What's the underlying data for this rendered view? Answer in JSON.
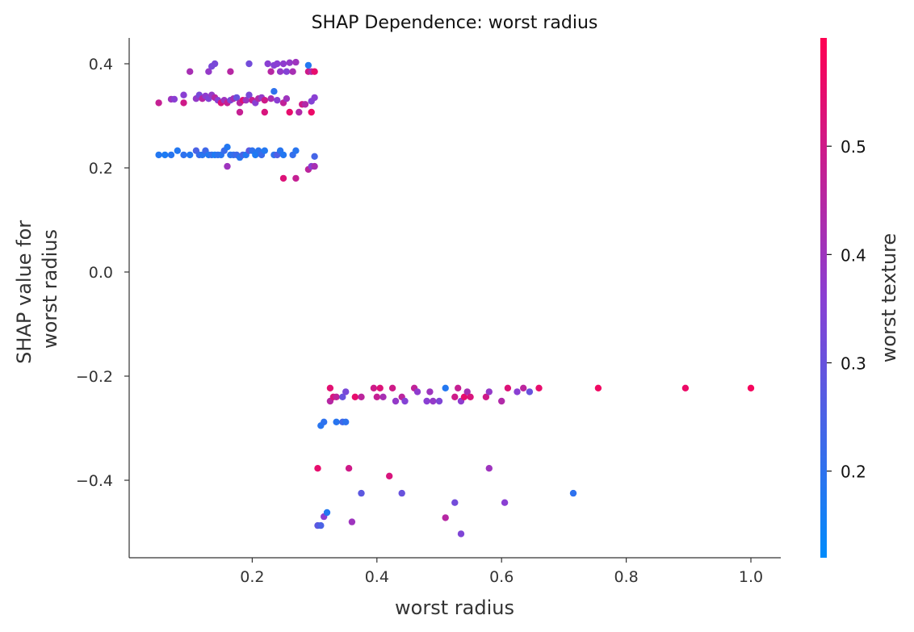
{
  "chart_data": {
    "type": "scatter",
    "title": "SHAP Dependence: worst radius",
    "xlabel": "worst radius",
    "ylabel_lines": [
      "SHAP value for",
      "worst radius"
    ],
    "xlim": [
      0.0,
      1.05
    ],
    "ylim": [
      -0.55,
      0.45
    ],
    "x_ticks": [
      0.2,
      0.4,
      0.6,
      0.8,
      1.0
    ],
    "x_tick_labels": [
      "0.2",
      "0.4",
      "0.6",
      "0.8",
      "1.0"
    ],
    "y_ticks": [
      0.4,
      0.2,
      0.0,
      -0.2,
      -0.4
    ],
    "y_tick_labels": [
      "0.4",
      "0.2",
      "0.0",
      "−0.2",
      "−0.4"
    ],
    "grid": false,
    "colorbar": {
      "label": "worst texture",
      "range": [
        0.12,
        0.6
      ],
      "ticks": [
        0.5,
        0.4,
        0.3,
        0.2
      ],
      "tick_labels": [
        "0.5",
        "0.4",
        "0.3",
        "0.2"
      ],
      "low_color": "#008bfb",
      "mid_color": "#8a3fd3",
      "high_color": "#ff0052"
    },
    "points": [
      {
        "x": 0.1,
        "y": 0.385,
        "c": 0.42
      },
      {
        "x": 0.13,
        "y": 0.385,
        "c": 0.38
      },
      {
        "x": 0.135,
        "y": 0.395,
        "c": 0.33
      },
      {
        "x": 0.14,
        "y": 0.4,
        "c": 0.33
      },
      {
        "x": 0.165,
        "y": 0.385,
        "c": 0.45
      },
      {
        "x": 0.195,
        "y": 0.4,
        "c": 0.32
      },
      {
        "x": 0.225,
        "y": 0.4,
        "c": 0.36
      },
      {
        "x": 0.23,
        "y": 0.385,
        "c": 0.45
      },
      {
        "x": 0.235,
        "y": 0.397,
        "c": 0.35
      },
      {
        "x": 0.24,
        "y": 0.4,
        "c": 0.36
      },
      {
        "x": 0.245,
        "y": 0.385,
        "c": 0.38
      },
      {
        "x": 0.25,
        "y": 0.4,
        "c": 0.37
      },
      {
        "x": 0.255,
        "y": 0.385,
        "c": 0.35
      },
      {
        "x": 0.26,
        "y": 0.402,
        "c": 0.38
      },
      {
        "x": 0.265,
        "y": 0.385,
        "c": 0.42
      },
      {
        "x": 0.27,
        "y": 0.403,
        "c": 0.4
      },
      {
        "x": 0.29,
        "y": 0.385,
        "c": 0.5
      },
      {
        "x": 0.295,
        "y": 0.385,
        "c": 0.44
      },
      {
        "x": 0.29,
        "y": 0.397,
        "c": 0.18
      },
      {
        "x": 0.3,
        "y": 0.385,
        "c": 0.55
      },
      {
        "x": 0.05,
        "y": 0.325,
        "c": 0.48
      },
      {
        "x": 0.07,
        "y": 0.332,
        "c": 0.4
      },
      {
        "x": 0.075,
        "y": 0.332,
        "c": 0.36
      },
      {
        "x": 0.09,
        "y": 0.34,
        "c": 0.36
      },
      {
        "x": 0.09,
        "y": 0.325,
        "c": 0.5
      },
      {
        "x": 0.11,
        "y": 0.333,
        "c": 0.38
      },
      {
        "x": 0.115,
        "y": 0.34,
        "c": 0.33
      },
      {
        "x": 0.12,
        "y": 0.333,
        "c": 0.45
      },
      {
        "x": 0.125,
        "y": 0.338,
        "c": 0.37
      },
      {
        "x": 0.13,
        "y": 0.333,
        "c": 0.34
      },
      {
        "x": 0.135,
        "y": 0.34,
        "c": 0.38
      },
      {
        "x": 0.14,
        "y": 0.335,
        "c": 0.45
      },
      {
        "x": 0.145,
        "y": 0.33,
        "c": 0.36
      },
      {
        "x": 0.15,
        "y": 0.325,
        "c": 0.52
      },
      {
        "x": 0.155,
        "y": 0.33,
        "c": 0.4
      },
      {
        "x": 0.16,
        "y": 0.325,
        "c": 0.48
      },
      {
        "x": 0.165,
        "y": 0.33,
        "c": 0.34
      },
      {
        "x": 0.17,
        "y": 0.333,
        "c": 0.42
      },
      {
        "x": 0.175,
        "y": 0.335,
        "c": 0.3
      },
      {
        "x": 0.18,
        "y": 0.325,
        "c": 0.45
      },
      {
        "x": 0.185,
        "y": 0.33,
        "c": 0.53
      },
      {
        "x": 0.19,
        "y": 0.33,
        "c": 0.4
      },
      {
        "x": 0.195,
        "y": 0.34,
        "c": 0.33
      },
      {
        "x": 0.2,
        "y": 0.33,
        "c": 0.48
      },
      {
        "x": 0.205,
        "y": 0.325,
        "c": 0.36
      },
      {
        "x": 0.21,
        "y": 0.333,
        "c": 0.44
      },
      {
        "x": 0.215,
        "y": 0.335,
        "c": 0.38
      },
      {
        "x": 0.22,
        "y": 0.33,
        "c": 0.5
      },
      {
        "x": 0.23,
        "y": 0.333,
        "c": 0.42
      },
      {
        "x": 0.24,
        "y": 0.33,
        "c": 0.36
      },
      {
        "x": 0.25,
        "y": 0.325,
        "c": 0.47
      },
      {
        "x": 0.255,
        "y": 0.333,
        "c": 0.4
      },
      {
        "x": 0.28,
        "y": 0.322,
        "c": 0.5
      },
      {
        "x": 0.285,
        "y": 0.322,
        "c": 0.44
      },
      {
        "x": 0.295,
        "y": 0.328,
        "c": 0.35
      },
      {
        "x": 0.3,
        "y": 0.335,
        "c": 0.36
      },
      {
        "x": 0.18,
        "y": 0.307,
        "c": 0.48
      },
      {
        "x": 0.22,
        "y": 0.307,
        "c": 0.52
      },
      {
        "x": 0.235,
        "y": 0.347,
        "c": 0.2
      },
      {
        "x": 0.26,
        "y": 0.307,
        "c": 0.55
      },
      {
        "x": 0.275,
        "y": 0.307,
        "c": 0.44
      },
      {
        "x": 0.295,
        "y": 0.307,
        "c": 0.56
      },
      {
        "x": 0.05,
        "y": 0.225,
        "c": 0.18
      },
      {
        "x": 0.06,
        "y": 0.225,
        "c": 0.17
      },
      {
        "x": 0.07,
        "y": 0.225,
        "c": 0.19
      },
      {
        "x": 0.08,
        "y": 0.233,
        "c": 0.18
      },
      {
        "x": 0.09,
        "y": 0.225,
        "c": 0.2
      },
      {
        "x": 0.1,
        "y": 0.225,
        "c": 0.18
      },
      {
        "x": 0.11,
        "y": 0.233,
        "c": 0.25
      },
      {
        "x": 0.115,
        "y": 0.225,
        "c": 0.22
      },
      {
        "x": 0.12,
        "y": 0.225,
        "c": 0.19
      },
      {
        "x": 0.125,
        "y": 0.233,
        "c": 0.23
      },
      {
        "x": 0.13,
        "y": 0.225,
        "c": 0.18
      },
      {
        "x": 0.135,
        "y": 0.225,
        "c": 0.21
      },
      {
        "x": 0.14,
        "y": 0.225,
        "c": 0.17
      },
      {
        "x": 0.145,
        "y": 0.225,
        "c": 0.2
      },
      {
        "x": 0.15,
        "y": 0.225,
        "c": 0.19
      },
      {
        "x": 0.155,
        "y": 0.233,
        "c": 0.22
      },
      {
        "x": 0.16,
        "y": 0.24,
        "c": 0.18
      },
      {
        "x": 0.165,
        "y": 0.225,
        "c": 0.19
      },
      {
        "x": 0.17,
        "y": 0.225,
        "c": 0.21
      },
      {
        "x": 0.175,
        "y": 0.225,
        "c": 0.23
      },
      {
        "x": 0.18,
        "y": 0.22,
        "c": 0.19
      },
      {
        "x": 0.185,
        "y": 0.225,
        "c": 0.24
      },
      {
        "x": 0.19,
        "y": 0.225,
        "c": 0.18
      },
      {
        "x": 0.195,
        "y": 0.233,
        "c": 0.28
      },
      {
        "x": 0.2,
        "y": 0.233,
        "c": 0.2
      },
      {
        "x": 0.205,
        "y": 0.225,
        "c": 0.17
      },
      {
        "x": 0.21,
        "y": 0.233,
        "c": 0.19
      },
      {
        "x": 0.215,
        "y": 0.225,
        "c": 0.22
      },
      {
        "x": 0.22,
        "y": 0.233,
        "c": 0.18
      },
      {
        "x": 0.235,
        "y": 0.225,
        "c": 0.2
      },
      {
        "x": 0.24,
        "y": 0.225,
        "c": 0.26
      },
      {
        "x": 0.245,
        "y": 0.233,
        "c": 0.19
      },
      {
        "x": 0.25,
        "y": 0.225,
        "c": 0.18
      },
      {
        "x": 0.265,
        "y": 0.225,
        "c": 0.21
      },
      {
        "x": 0.27,
        "y": 0.233,
        "c": 0.19
      },
      {
        "x": 0.3,
        "y": 0.222,
        "c": 0.24
      },
      {
        "x": 0.16,
        "y": 0.203,
        "c": 0.4
      },
      {
        "x": 0.25,
        "y": 0.18,
        "c": 0.53
      },
      {
        "x": 0.27,
        "y": 0.18,
        "c": 0.48
      },
      {
        "x": 0.29,
        "y": 0.197,
        "c": 0.46
      },
      {
        "x": 0.295,
        "y": 0.203,
        "c": 0.36
      },
      {
        "x": 0.3,
        "y": 0.203,
        "c": 0.42
      },
      {
        "x": 0.325,
        "y": -0.223,
        "c": 0.54
      },
      {
        "x": 0.325,
        "y": -0.248,
        "c": 0.45
      },
      {
        "x": 0.33,
        "y": -0.24,
        "c": 0.52
      },
      {
        "x": 0.335,
        "y": -0.24,
        "c": 0.47
      },
      {
        "x": 0.345,
        "y": -0.24,
        "c": 0.3
      },
      {
        "x": 0.35,
        "y": -0.23,
        "c": 0.33
      },
      {
        "x": 0.365,
        "y": -0.24,
        "c": 0.55
      },
      {
        "x": 0.375,
        "y": -0.24,
        "c": 0.46
      },
      {
        "x": 0.395,
        "y": -0.223,
        "c": 0.5
      },
      {
        "x": 0.4,
        "y": -0.24,
        "c": 0.48
      },
      {
        "x": 0.405,
        "y": -0.223,
        "c": 0.53
      },
      {
        "x": 0.41,
        "y": -0.24,
        "c": 0.42
      },
      {
        "x": 0.425,
        "y": -0.223,
        "c": 0.5
      },
      {
        "x": 0.43,
        "y": -0.248,
        "c": 0.38
      },
      {
        "x": 0.44,
        "y": -0.24,
        "c": 0.46
      },
      {
        "x": 0.445,
        "y": -0.248,
        "c": 0.35
      },
      {
        "x": 0.46,
        "y": -0.223,
        "c": 0.47
      },
      {
        "x": 0.465,
        "y": -0.23,
        "c": 0.37
      },
      {
        "x": 0.48,
        "y": -0.248,
        "c": 0.36
      },
      {
        "x": 0.485,
        "y": -0.23,
        "c": 0.4
      },
      {
        "x": 0.49,
        "y": -0.248,
        "c": 0.38
      },
      {
        "x": 0.5,
        "y": -0.248,
        "c": 0.34
      },
      {
        "x": 0.51,
        "y": -0.223,
        "c": 0.18
      },
      {
        "x": 0.525,
        "y": -0.24,
        "c": 0.5
      },
      {
        "x": 0.53,
        "y": -0.223,
        "c": 0.48
      },
      {
        "x": 0.535,
        "y": -0.248,
        "c": 0.37
      },
      {
        "x": 0.54,
        "y": -0.24,
        "c": 0.55
      },
      {
        "x": 0.545,
        "y": -0.23,
        "c": 0.42
      },
      {
        "x": 0.55,
        "y": -0.24,
        "c": 0.52
      },
      {
        "x": 0.575,
        "y": -0.24,
        "c": 0.5
      },
      {
        "x": 0.58,
        "y": -0.23,
        "c": 0.38
      },
      {
        "x": 0.6,
        "y": -0.248,
        "c": 0.44
      },
      {
        "x": 0.61,
        "y": -0.223,
        "c": 0.53
      },
      {
        "x": 0.625,
        "y": -0.23,
        "c": 0.36
      },
      {
        "x": 0.635,
        "y": -0.223,
        "c": 0.46
      },
      {
        "x": 0.645,
        "y": -0.23,
        "c": 0.3
      },
      {
        "x": 0.66,
        "y": -0.223,
        "c": 0.55
      },
      {
        "x": 0.755,
        "y": -0.223,
        "c": 0.57
      },
      {
        "x": 0.895,
        "y": -0.223,
        "c": 0.56
      },
      {
        "x": 1.0,
        "y": -0.223,
        "c": 0.58
      },
      {
        "x": 0.31,
        "y": -0.295,
        "c": 0.19
      },
      {
        "x": 0.315,
        "y": -0.288,
        "c": 0.2
      },
      {
        "x": 0.335,
        "y": -0.288,
        "c": 0.19
      },
      {
        "x": 0.345,
        "y": -0.288,
        "c": 0.23
      },
      {
        "x": 0.35,
        "y": -0.288,
        "c": 0.2
      },
      {
        "x": 0.305,
        "y": -0.377,
        "c": 0.55
      },
      {
        "x": 0.355,
        "y": -0.377,
        "c": 0.5
      },
      {
        "x": 0.42,
        "y": -0.392,
        "c": 0.52
      },
      {
        "x": 0.58,
        "y": -0.377,
        "c": 0.4
      },
      {
        "x": 0.375,
        "y": -0.425,
        "c": 0.28
      },
      {
        "x": 0.44,
        "y": -0.425,
        "c": 0.3
      },
      {
        "x": 0.525,
        "y": -0.443,
        "c": 0.32
      },
      {
        "x": 0.605,
        "y": -0.443,
        "c": 0.36
      },
      {
        "x": 0.715,
        "y": -0.425,
        "c": 0.2
      },
      {
        "x": 0.315,
        "y": -0.47,
        "c": 0.36
      },
      {
        "x": 0.32,
        "y": -0.462,
        "c": 0.18
      },
      {
        "x": 0.36,
        "y": -0.48,
        "c": 0.4
      },
      {
        "x": 0.305,
        "y": -0.487,
        "c": 0.28
      },
      {
        "x": 0.31,
        "y": -0.487,
        "c": 0.25
      },
      {
        "x": 0.51,
        "y": -0.472,
        "c": 0.45
      },
      {
        "x": 0.535,
        "y": -0.503,
        "c": 0.34
      }
    ]
  }
}
